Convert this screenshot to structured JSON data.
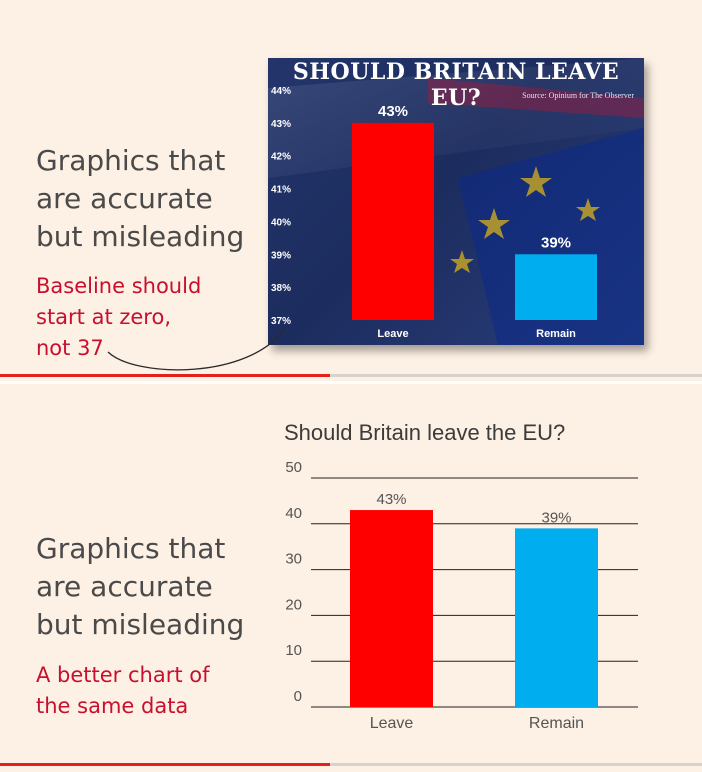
{
  "slide1": {
    "heading_lines": [
      "Graphics that",
      "are accurate",
      "but misleading"
    ],
    "note_lines": [
      "Baseline should",
      "start at zero,",
      "not 37"
    ],
    "progress": 0.47
  },
  "slide2": {
    "heading_lines": [
      "Graphics that",
      "are accurate",
      "but misleading"
    ],
    "note_lines": [
      "A better chart of",
      "the same data"
    ],
    "progress": 0.47
  },
  "colors": {
    "background": "#fdf0e4",
    "heading_text": "#4a4a4a",
    "accent_red": "#c8102e",
    "leave_bar": "#ff0000",
    "remain_bar": "#00adef",
    "panel_navy": "#1c2c5e",
    "progress": "#e2201c"
  },
  "chart_data": [
    {
      "type": "bar",
      "title": "SHOULD BRITAIN LEAVE EU?",
      "source_note": "Source: Opinium for The Observer",
      "categories": [
        "Leave",
        "Remain"
      ],
      "values": [
        43,
        39
      ],
      "data_labels": [
        "43%",
        "39%"
      ],
      "ylim": [
        37,
        44
      ],
      "yticks": [
        37,
        38,
        39,
        40,
        41,
        42,
        43,
        44
      ],
      "ytick_labels": [
        "37%",
        "38%",
        "39%",
        "40%",
        "41%",
        "42%",
        "43%",
        "44%"
      ],
      "colors": [
        "#ff0000",
        "#00adef"
      ],
      "grid": false
    },
    {
      "type": "bar",
      "title": "Should Britain leave the EU?",
      "categories": [
        "Leave",
        "Remain"
      ],
      "values": [
        43,
        39
      ],
      "data_labels": [
        "43%",
        "39%"
      ],
      "ylim": [
        0,
        50
      ],
      "yticks": [
        0,
        10,
        20,
        30,
        40,
        50
      ],
      "ytick_labels": [
        "0",
        "10",
        "20",
        "30",
        "40",
        "50"
      ],
      "colors": [
        "#ff0000",
        "#00adef"
      ],
      "grid": true
    }
  ]
}
